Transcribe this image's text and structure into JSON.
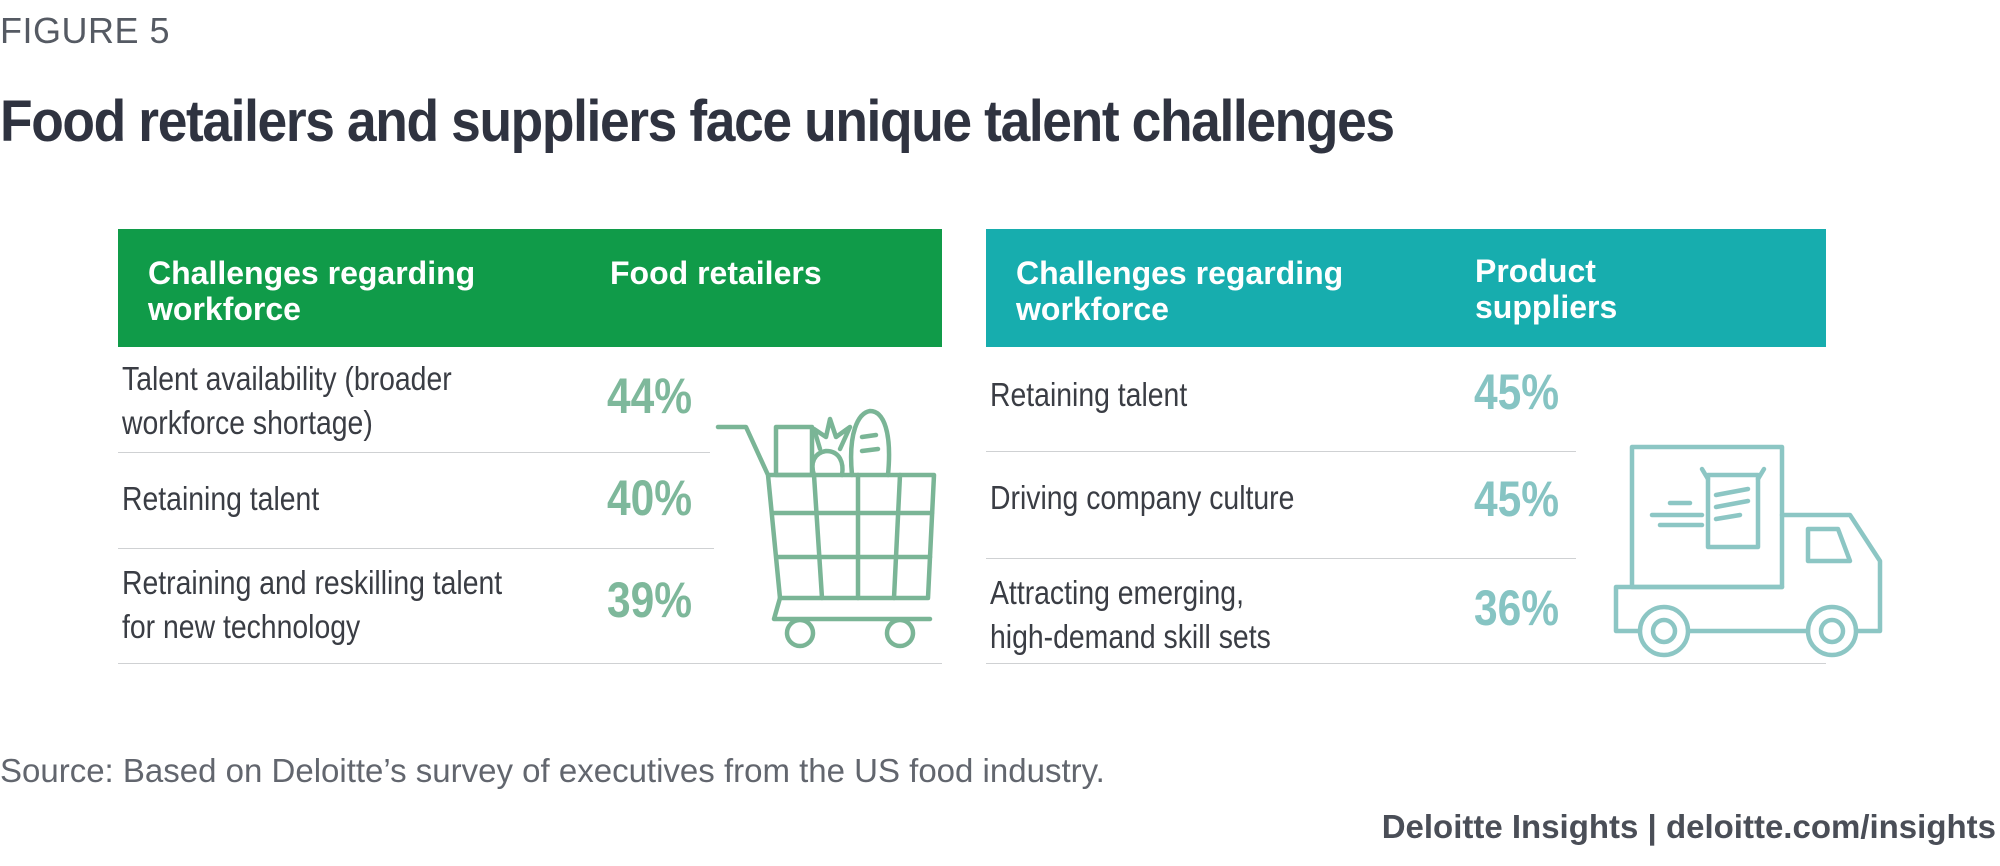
{
  "figure_label": "FIGURE 5",
  "title": "Food retailers and suppliers face unique talent challenges",
  "colors": {
    "retailer_header": "#109b49",
    "supplier_header": "#17adae",
    "retailer_value": "#7eb89b",
    "supplier_value": "#86c4c3",
    "icon_retailer": "#7ab596",
    "icon_supplier": "#8cc6c4"
  },
  "chart_data": [
    {
      "type": "table",
      "columns": [
        "Challenges regarding workforce",
        "Food retailers"
      ],
      "rows": [
        {
          "label_lines": [
            "Talent availability (broader",
            "workforce shortage)"
          ],
          "value": 44,
          "display": "44%"
        },
        {
          "label_lines": [
            "Retaining talent"
          ],
          "value": 40,
          "display": "40%"
        },
        {
          "label_lines": [
            "Retraining and reskilling talent",
            "for new technology"
          ],
          "value": 39,
          "display": "39%"
        }
      ],
      "icon": "shopping-cart-icon"
    },
    {
      "type": "table",
      "columns": [
        "Challenges regarding workforce",
        "Product suppliers"
      ],
      "rows": [
        {
          "label_lines": [
            "Retaining talent"
          ],
          "value": 45,
          "display": "45%"
        },
        {
          "label_lines": [
            "Driving company culture"
          ],
          "value": 45,
          "display": "45%"
        },
        {
          "label_lines": [
            "Attracting emerging,",
            "high-demand skill sets"
          ],
          "value": 36,
          "display": "36%"
        }
      ],
      "icon": "delivery-truck-icon"
    }
  ],
  "source": "Source: Based on Deloitte’s survey of executives from the US food industry.",
  "credit": "Deloitte Insights | deloitte.com/insights"
}
